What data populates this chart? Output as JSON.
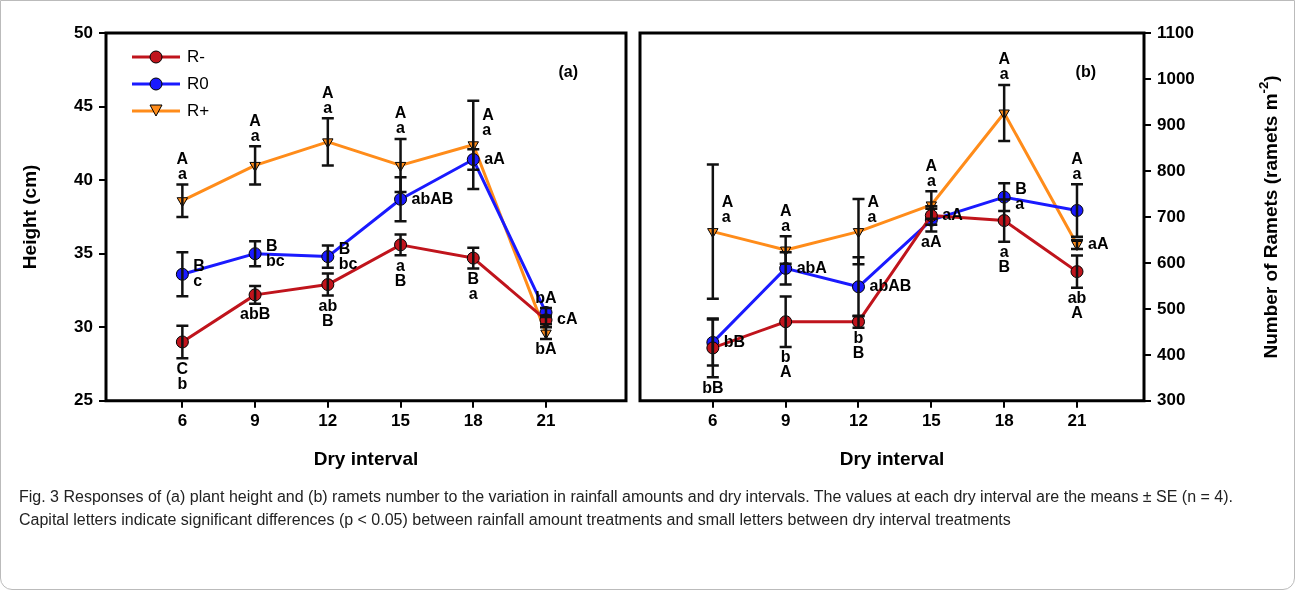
{
  "chart_data": [
    {
      "type": "line",
      "xlabel": "Dry interval",
      "ylabel": "Height (cm)",
      "categories": [
        "6",
        "9",
        "12",
        "15",
        "18",
        "21"
      ],
      "ylim": [
        25,
        50
      ],
      "yticks": [
        25,
        30,
        35,
        40,
        45,
        50
      ],
      "grid": false,
      "legend": "top left",
      "series": [
        {
          "name": "R-",
          "color": "#c0141c",
          "marker": "circle",
          "values": [
            29.0,
            32.2,
            32.9,
            35.6,
            34.7,
            30.5
          ],
          "errors": [
            1.1,
            0.6,
            0.75,
            0.7,
            0.7,
            0.3
          ]
        },
        {
          "name": "R0",
          "color": "#1a1aff",
          "marker": "circle",
          "values": [
            33.6,
            35.0,
            34.8,
            38.7,
            41.4,
            31.0
          ],
          "errors": [
            1.5,
            0.85,
            0.75,
            1.5,
            0.7,
            0.3
          ]
        },
        {
          "name": "R+",
          "color": "#ff8c1a",
          "marker": "triangle",
          "values": [
            38.6,
            41.0,
            42.6,
            41.0,
            42.4,
            29.6
          ],
          "errors": [
            1.1,
            1.3,
            1.6,
            1.8,
            3.0,
            0.4
          ]
        }
      ],
      "annotations": [
        "(a)",
        "Fig. 3 Responses of (a) plant height and (b) ramets number to the variation in rainfall amounts and dry intervals. The values at each dry interval are the means ± SE (n = 4). Capital letters indicate significant differences (p < 0.05) between rainfall amount treatments and small letters between dry interval treatments",
        {
          "text": "A",
          "x": "6",
          "y": 38.6
        },
        {
          "text": "a",
          "x": "6",
          "y": 38.6
        },
        {
          "text": "B",
          "x": "6",
          "y": 33.6
        },
        {
          "text": "c",
          "x": "6",
          "y": 33.6
        },
        {
          "text": "C",
          "x": "6",
          "y": 29.0
        },
        {
          "text": "b",
          "x": "6",
          "y": 29.0
        },
        {
          "text": "A",
          "x": "9",
          "y": 41.0
        },
        {
          "text": "a",
          "x": "9",
          "y": 41.0
        },
        {
          "text": "B",
          "x": "9",
          "y": 35.0
        },
        {
          "text": "bc",
          "x": "9",
          "y": 35.0
        },
        {
          "text": "abB",
          "x": "9",
          "y": 32.2
        },
        {
          "text": "A",
          "x": "12",
          "y": 42.6
        },
        {
          "text": "a",
          "x": "12",
          "y": 42.6
        },
        {
          "text": "B",
          "x": "12",
          "y": 34.8
        },
        {
          "text": "bc",
          "x": "12",
          "y": 34.8
        },
        {
          "text": "ab",
          "x": "12",
          "y": 32.9
        },
        {
          "text": "B",
          "x": "12",
          "y": 32.9
        },
        {
          "text": "A",
          "x": "15",
          "y": 41.0
        },
        {
          "text": "a",
          "x": "15",
          "y": 41.0
        },
        {
          "text": "abAB",
          "x": "15",
          "y": 38.7
        },
        {
          "text": "a",
          "x": "15",
          "y": 35.6
        },
        {
          "text": "B",
          "x": "15",
          "y": 35.6
        },
        {
          "text": "A",
          "x": "18",
          "y": 42.4
        },
        {
          "text": "a",
          "x": "18",
          "y": 42.4
        },
        {
          "text": "aA",
          "x": "18",
          "y": 41.4
        },
        {
          "text": "B",
          "x": "18",
          "y": 34.7
        },
        {
          "text": "a",
          "x": "18",
          "y": 34.7
        },
        {
          "text": "bA",
          "x": "21",
          "y": 31.0
        },
        {
          "text": "cA",
          "x": "21",
          "y": 30.5
        },
        {
          "text": "bA",
          "x": "21",
          "y": 29.6
        }
      ]
    },
    {
      "type": "line",
      "xlabel": "Dry interval",
      "ylabel": "Number of Ramets (ramets m$^{-2}$)",
      "categories": [
        "6",
        "9",
        "12",
        "15",
        "18",
        "21"
      ],
      "ylim": [
        300,
        1100
      ],
      "yticks": [
        300,
        400,
        500,
        600,
        700,
        800,
        900,
        1000,
        1100
      ],
      "grid": false,
      "series": [
        {
          "color": "#c0141c",
          "marker": "circle",
          "values": [
            415,
            472,
            472,
            703,
            692,
            581
          ],
          "errors": [
            64,
            55,
            13,
            20,
            46,
            35
          ]
        },
        {
          "color": "#1a1aff",
          "marker": "circle",
          "values": [
            427,
            588,
            548,
            693,
            743,
            714
          ],
          "errors": [
            50,
            35,
            64,
            25,
            30,
            57
          ]
        },
        {
          "color": "#ff8c1a",
          "marker": "triangle",
          "values": [
            668,
            628,
            668,
            726,
            926,
            640
          ],
          "errors": [
            146,
            30,
            71,
            30,
            61,
            10
          ]
        }
      ],
      "annotations": [
        "(b)",
        {
          "text": "A",
          "x": "6",
          "y": 668
        },
        {
          "text": "a",
          "x": "6",
          "y": 668
        },
        {
          "text": "bB",
          "x": "6",
          "y": 427
        },
        {
          "text": "bB",
          "x": "6",
          "y": 415
        },
        {
          "text": "A",
          "x": "9",
          "y": 628
        },
        {
          "text": "a",
          "x": "9",
          "y": 628
        },
        {
          "text": "abA",
          "x": "9",
          "y": 588
        },
        {
          "text": "b",
          "x": "9",
          "y": 472
        },
        {
          "text": "A",
          "x": "9",
          "y": 472
        },
        {
          "text": "A",
          "x": "12",
          "y": 668
        },
        {
          "text": "a",
          "x": "12",
          "y": 668
        },
        {
          "text": "abAB",
          "x": "12",
          "y": 548
        },
        {
          "text": "b",
          "x": "12",
          "y": 472
        },
        {
          "text": "B",
          "x": "12",
          "y": 472
        },
        {
          "text": "A",
          "x": "15",
          "y": 726
        },
        {
          "text": "a",
          "x": "15",
          "y": 726
        },
        {
          "text": "aA",
          "x": "15",
          "y": 703
        },
        {
          "text": "aA",
          "x": "15",
          "y": 693
        },
        {
          "text": "A",
          "x": "18",
          "y": 926
        },
        {
          "text": "a",
          "x": "18",
          "y": 926
        },
        {
          "text": "B",
          "x": "18",
          "y": 743
        },
        {
          "text": "a",
          "x": "18",
          "y": 743
        },
        {
          "text": "a",
          "x": "18",
          "y": 692
        },
        {
          "text": "B",
          "x": "18",
          "y": 692
        },
        {
          "text": "A",
          "x": "21",
          "y": 714
        },
        {
          "text": "a",
          "x": "21",
          "y": 714
        },
        {
          "text": "aA",
          "x": "21",
          "y": 640
        },
        {
          "text": "ab",
          "x": "21",
          "y": 581
        },
        {
          "text": "A",
          "x": "21",
          "y": 581
        }
      ]
    }
  ]
}
